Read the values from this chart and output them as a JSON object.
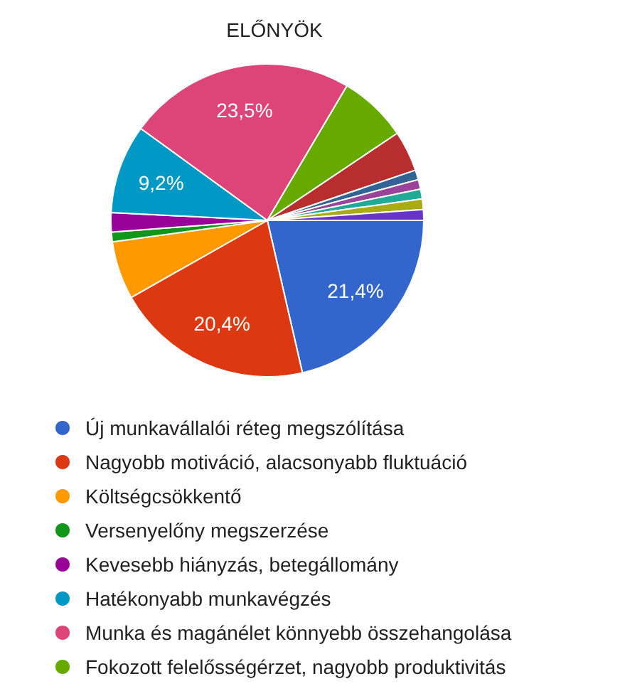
{
  "chart_data": {
    "type": "pie",
    "title": "ELŐNYÖK",
    "categories": [
      "Új munkavállalói réteg megszólítása",
      "Nagyobb motiváció, alacsonyabb fluktuáció",
      "Költségcsökkentő",
      "Versenyelőny megszerzése",
      "Kevesebb hiányzás, betegállomány",
      "Hatékonyabb munkavégzés",
      "Munka és magánélet könnyebb összehangolása",
      "Fokozott felelősségérzet, nagyobb produktivitás",
      null,
      null,
      null,
      null,
      null,
      null
    ],
    "values": [
      21.4,
      20.4,
      6.0,
      1.0,
      2.0,
      9.2,
      23.5,
      7.1,
      4.2,
      1.0,
      1.0,
      1.0,
      1.1,
      1.1
    ],
    "colors": [
      "#3366cc",
      "#dc3912",
      "#ff9900",
      "#109618",
      "#990099",
      "#0099c6",
      "#dd4477",
      "#66aa00",
      "#b82e2e",
      "#316395",
      "#994499",
      "#22aa99",
      "#aaaa11",
      "#6633cc"
    ],
    "value_labels": [
      "21,4%",
      "20,4%",
      null,
      null,
      null,
      "9,2%",
      "23,5%",
      null,
      null,
      null,
      null,
      null,
      null,
      null
    ],
    "legend": "bottom"
  }
}
